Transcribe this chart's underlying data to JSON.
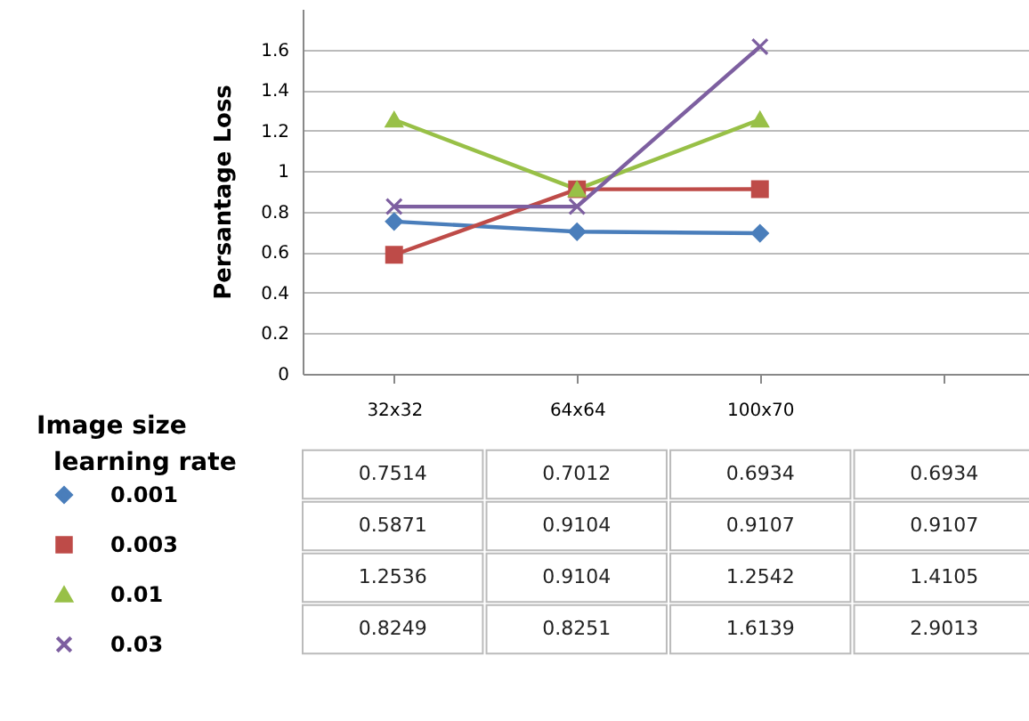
{
  "chart_data": {
    "type": "line",
    "ylabel": "Persantage Loss",
    "xlabel": "Image size",
    "legend_title": "learning rate",
    "categories": [
      "32x32",
      "64x64",
      "100x70",
      null
    ],
    "series": [
      {
        "name": "0.001",
        "color": "#4a7ebb",
        "marker": "diamond",
        "values": [
          0.7514,
          0.7012,
          0.6934,
          null
        ],
        "value_labels": [
          "0.7514",
          "0.7012",
          "0.6934",
          "0.6934"
        ]
      },
      {
        "name": "0.003",
        "color": "#be4b48",
        "marker": "square",
        "values": [
          0.5871,
          0.9104,
          0.9107,
          null
        ],
        "value_labels": [
          "0.5871",
          "0.9104",
          "0.9107",
          "0.9107"
        ]
      },
      {
        "name": "0.01",
        "color": "#98c047",
        "marker": "triangle",
        "values": [
          1.2536,
          0.9104,
          1.2542,
          null
        ],
        "value_labels": [
          "1.2536",
          "0.9104",
          "1.2542",
          "1.4105"
        ]
      },
      {
        "name": "0.03",
        "color": "#7d5fa0",
        "marker": "cross",
        "values": [
          0.8249,
          0.8251,
          1.6139,
          null
        ],
        "value_labels": [
          "0.8249",
          "0.8251",
          "1.6139",
          "2.9013"
        ]
      }
    ],
    "ylim": [
      0,
      1.8
    ],
    "yticks": [
      0,
      0.2,
      0.4,
      0.6,
      0.8,
      1,
      1.2,
      1.4,
      1.6
    ],
    "grid": "y",
    "legend": "bottom left"
  }
}
